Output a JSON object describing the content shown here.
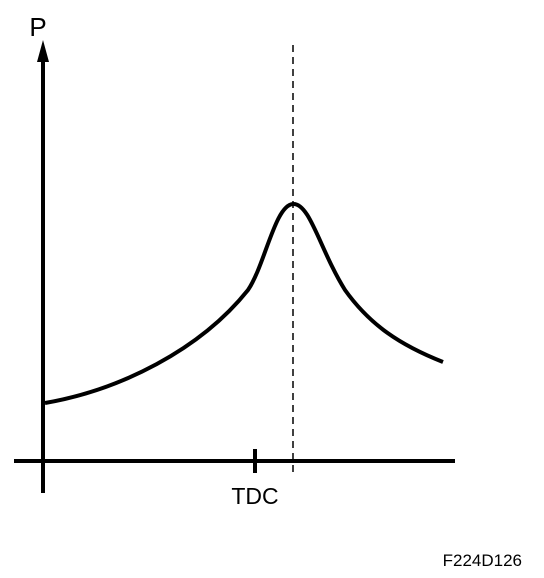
{
  "labels": {
    "y_axis": "P",
    "x_marker": "TDC",
    "figure_id": "F224D126"
  }
}
